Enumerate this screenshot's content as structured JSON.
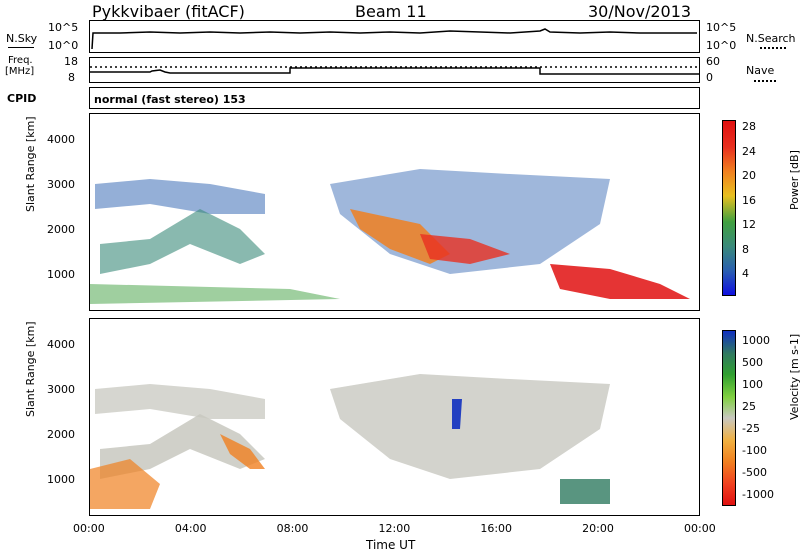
{
  "header": {
    "station": "Pykkvibaer (fitACF)",
    "beam": "Beam 11",
    "date": "30/Nov/2013"
  },
  "noise_panel": {
    "left_label": "N.Sky",
    "right_label": "N.Search",
    "tick_top": "10^5",
    "tick_bottom": "10^0"
  },
  "freq_panel": {
    "left_label_line1": "Freq.",
    "left_label_line2": "[MHz]",
    "left_tick_top": "18",
    "left_tick_bottom": "8",
    "right_label": "Nave",
    "right_tick_top": "60",
    "right_tick_bottom": "0"
  },
  "cpid": {
    "label": "CPID",
    "value": "normal (fast stereo) 153"
  },
  "chart_data": [
    {
      "type": "heatmap",
      "panel": "power",
      "ylabel": "Slant Range [km]",
      "ylim": [
        200,
        4600
      ],
      "yticks": [
        "1000",
        "2000",
        "3000",
        "4000"
      ],
      "colorbar_label": "Power [dB]",
      "colorbar_ticks": [
        "4",
        "8",
        "12",
        "16",
        "20",
        "24",
        "28"
      ],
      "colors": [
        "#1010e0",
        "#2a5fb0",
        "#3a8a7a",
        "#40a040",
        "#e8c020",
        "#f08020",
        "#e83020",
        "#e01010"
      ]
    },
    {
      "type": "heatmap",
      "panel": "velocity",
      "ylabel": "Slant Range [km]",
      "ylim": [
        200,
        4600
      ],
      "yticks": [
        "1000",
        "2000",
        "3000",
        "4000"
      ],
      "colorbar_label": "Velocity [m s-1]",
      "colorbar_ticks": [
        "1000",
        "500",
        "100",
        "25",
        "-25",
        "-100",
        "-500",
        "-1000"
      ],
      "colors": [
        "#1030c0",
        "#307a60",
        "#30a030",
        "#80d040",
        "#c8c8c0",
        "#f0b040",
        "#f08020",
        "#f04020",
        "#e01010"
      ]
    }
  ],
  "x_axis": {
    "label": "Time UT",
    "ticks": [
      "00:00",
      "04:00",
      "08:00",
      "12:00",
      "16:00",
      "20:00",
      "00:00"
    ]
  }
}
